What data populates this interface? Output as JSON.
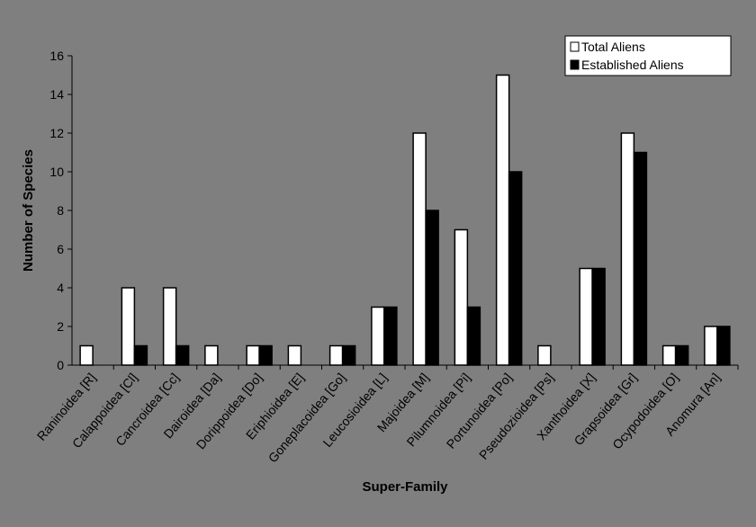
{
  "chart_data": {
    "type": "bar",
    "x_label": "Super-Family",
    "y_label": "Number of Species",
    "categories": [
      "Raninoidea [R]",
      "Calappoidea [Cl]",
      "Cancroidea [Cc]",
      "Dairoidea [Da]",
      "Dorippoidea [Do]",
      "Eriphioidea [E]",
      "Goneplacoidea [Go]",
      "Leucosioidea [L]",
      "Majoidea [M]",
      "Pilumnoidea [Pi]",
      "Portunoidea [Po]",
      "Pseudozioidea [Ps]",
      "Xanthoidea [X]",
      "Grapsoidea [Gr]",
      "Ocypodoidea [O]",
      "Anomura [An]"
    ],
    "series": [
      {
        "name": "Total Aliens",
        "color": "#ffffff",
        "values": [
          1,
          4,
          4,
          1,
          1,
          1,
          1,
          3,
          12,
          7,
          15,
          1,
          5,
          12,
          1,
          2
        ]
      },
      {
        "name": "Established Aliens",
        "color": "#000000",
        "values": [
          0,
          1,
          1,
          0,
          1,
          0,
          1,
          3,
          8,
          3,
          10,
          0,
          5,
          11,
          1,
          2
        ]
      }
    ],
    "ylim": [
      0,
      16
    ],
    "yticks": [
      0,
      2,
      4,
      6,
      8,
      10,
      12,
      14,
      16
    ],
    "grid": false,
    "legend": "top-right"
  }
}
